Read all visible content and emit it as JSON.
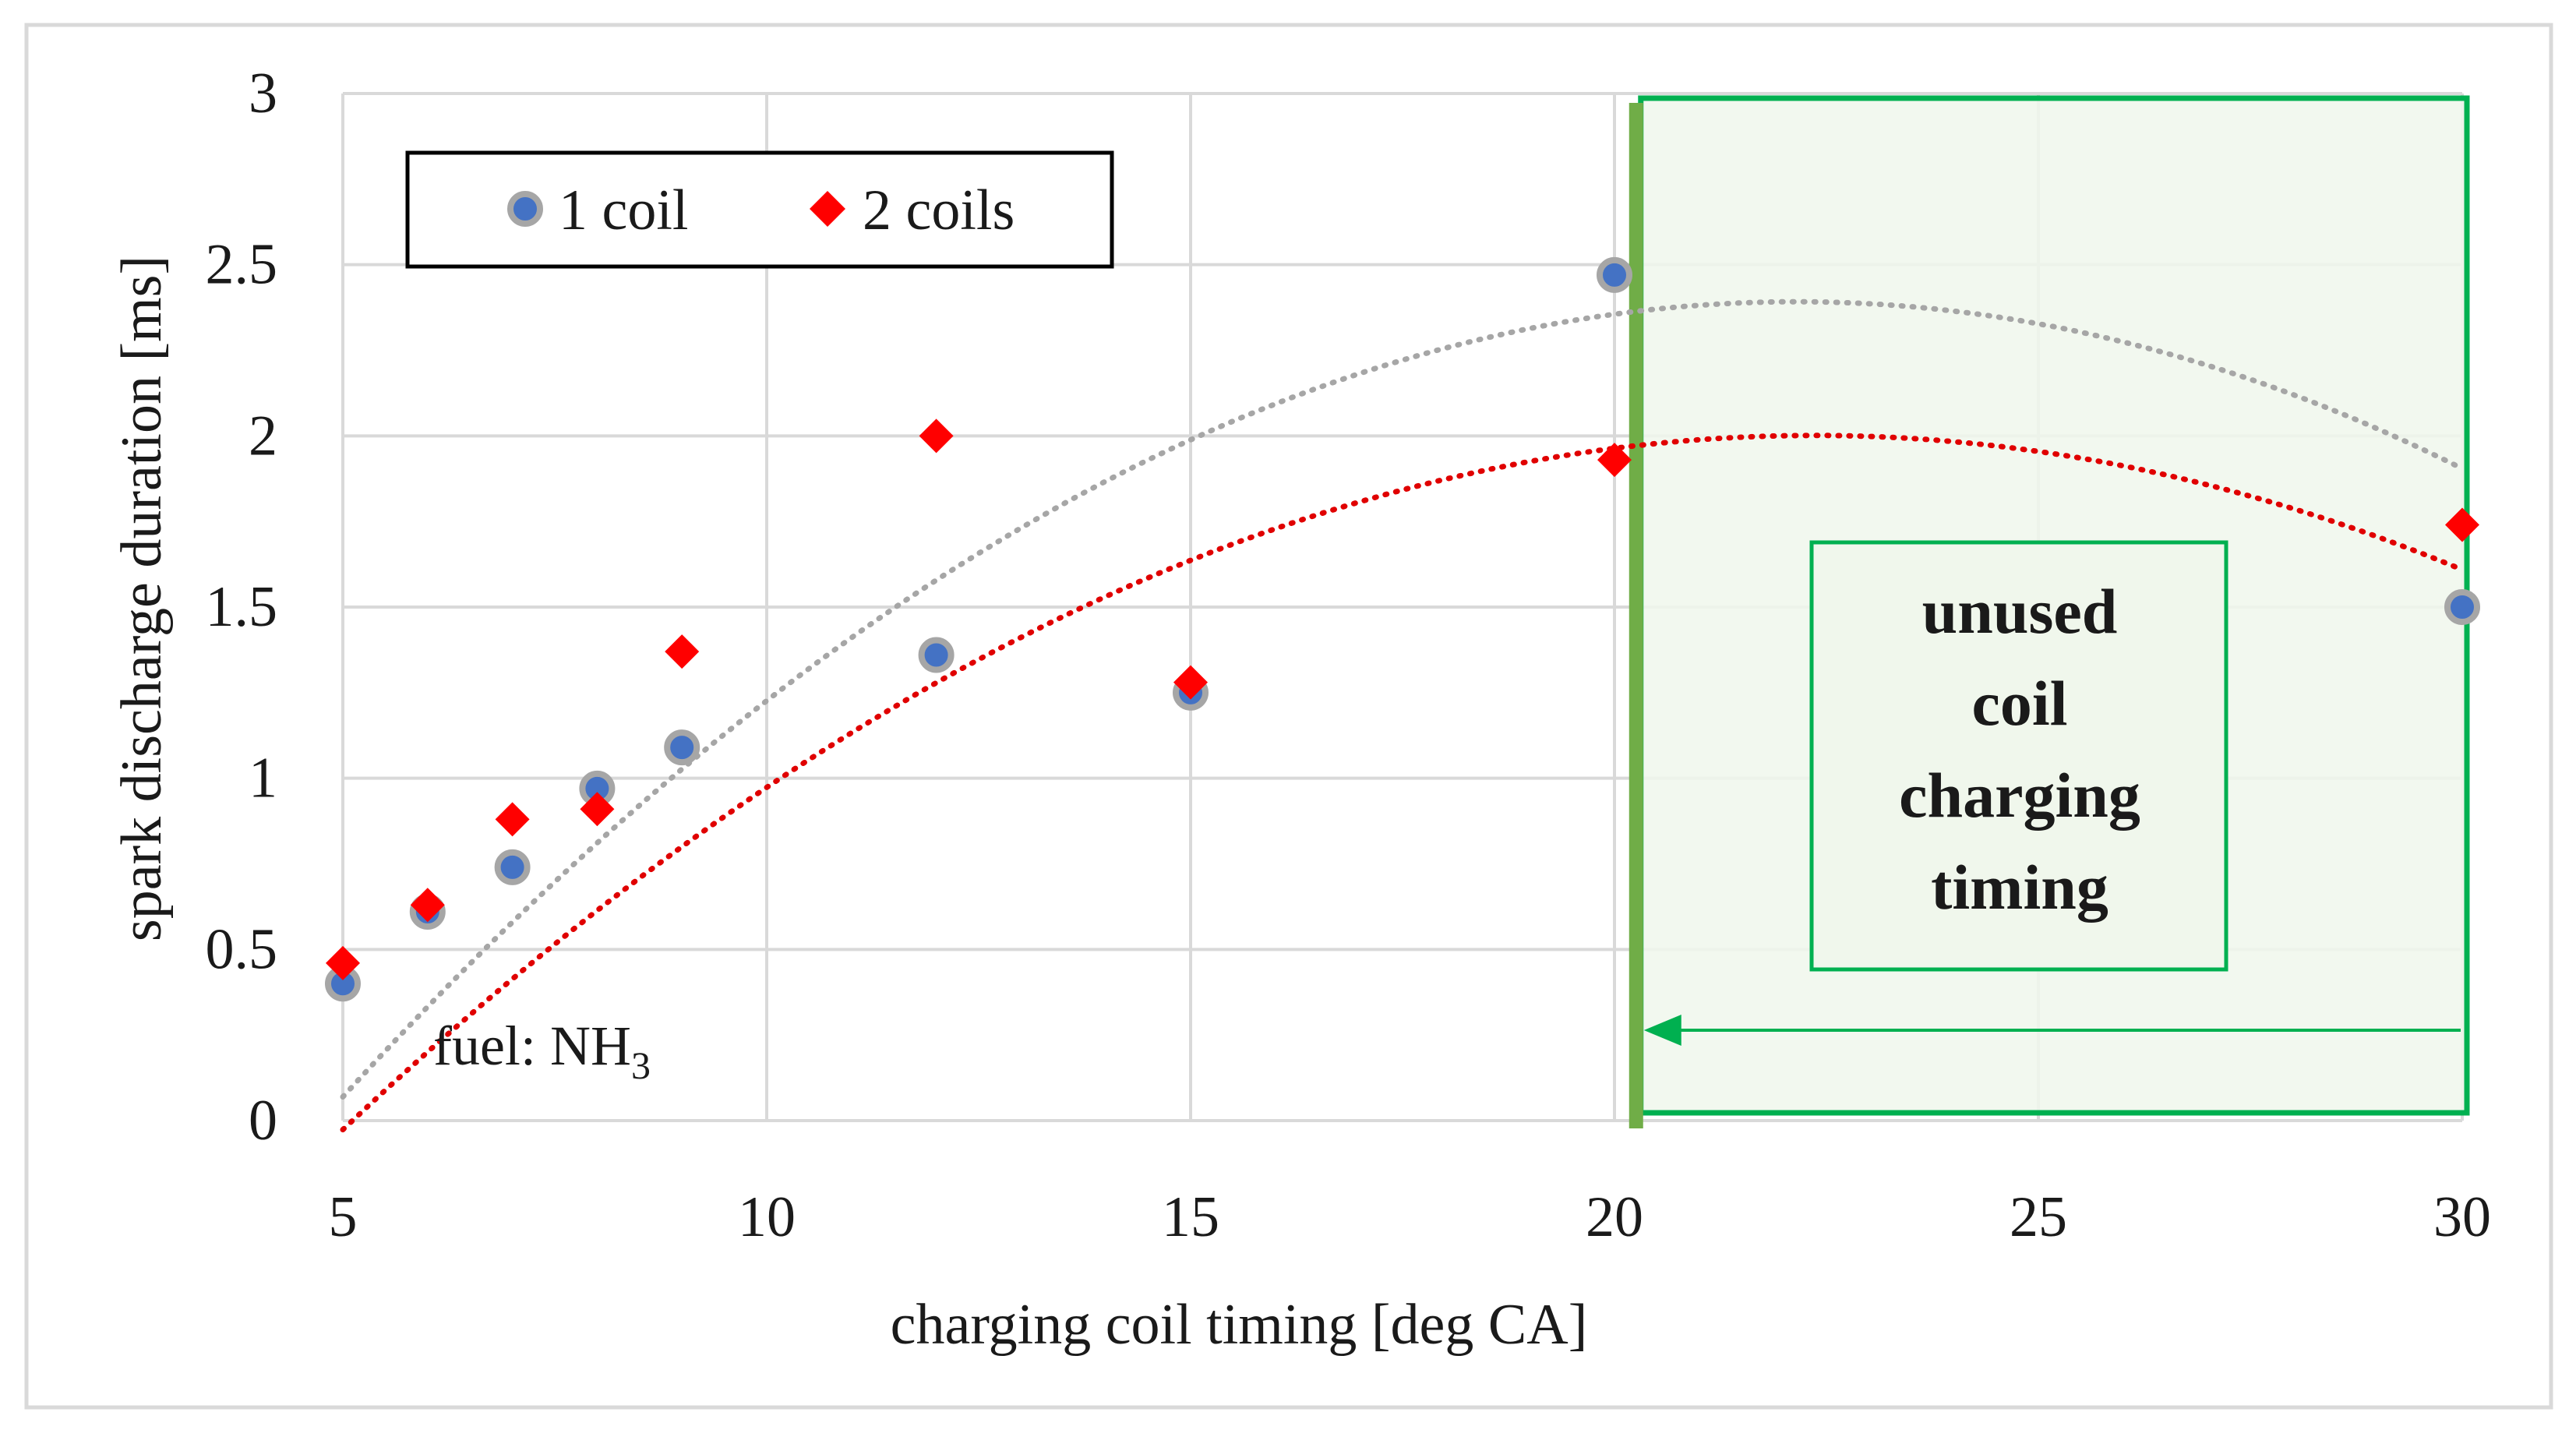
{
  "chart_data": {
    "type": "scatter",
    "title": "",
    "xlabel": "charging coil timing [deg CA]",
    "ylabel": "spark discharge duration [ms]",
    "xlim": [
      5,
      30
    ],
    "ylim": [
      0,
      3
    ],
    "x_ticks": [
      "5",
      "10",
      "15",
      "20",
      "25",
      "30"
    ],
    "y_ticks": [
      "0",
      "0.5",
      "1",
      "1.5",
      "2",
      "2.5",
      "3"
    ],
    "grid": true,
    "legend_position": "top-left",
    "series": [
      {
        "name": "1 coil",
        "marker": "circle",
        "color": "#4472C4",
        "edge_color": "#a6a6a6",
        "trend_color": "#a6a6a6",
        "points": [
          [
            5,
            0.4
          ],
          [
            6,
            0.61
          ],
          [
            7,
            0.74
          ],
          [
            8,
            0.97
          ],
          [
            9,
            1.09
          ],
          [
            12,
            1.36
          ],
          [
            15,
            1.25
          ],
          [
            20,
            2.47
          ],
          [
            30,
            1.5
          ]
        ],
        "trendline": [
          -0.0079,
          0.3499,
          -1.4825
        ]
      },
      {
        "name": "2 coils",
        "marker": "diamond",
        "color": "#ff0000",
        "trend_color": "#e00000",
        "points": [
          [
            5,
            0.46
          ],
          [
            6,
            0.63
          ],
          [
            7,
            0.88
          ],
          [
            8,
            0.91
          ],
          [
            9,
            1.37
          ],
          [
            12,
            2.0
          ],
          [
            15,
            1.28
          ],
          [
            20,
            1.93
          ],
          [
            30,
            1.74
          ]
        ],
        "trendline": [
          -0.006725,
          0.3008,
          -1.3623
        ]
      }
    ],
    "annotations": {
      "fuel_label": "fuel: NH",
      "fuel_subscript": "3",
      "region_lines": [
        "unused",
        "coil",
        "charging",
        "timing"
      ],
      "region_start_x": 20.2,
      "region_end_x": 30,
      "region_color": "#00b050",
      "divider_color": "#70ad47"
    }
  }
}
